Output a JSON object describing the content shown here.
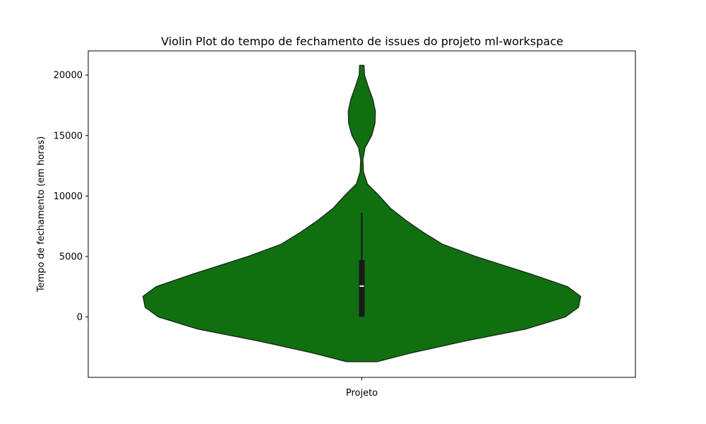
{
  "chart_data": {
    "type": "violin",
    "title": "Violin Plot do tempo de fechamento de issues do projeto ml-workspace",
    "xlabel": "",
    "ylabel": "Tempo de fechamento (em horas)",
    "categories": [
      "Projeto"
    ],
    "ylim": [
      -5000,
      22000
    ],
    "yticks": [
      0,
      5000,
      10000,
      15000,
      20000
    ],
    "grid": false,
    "color": "#107010",
    "edge_color": "#1c2a1c",
    "box_color": "#1a1a1a",
    "median_color": "#ffffff",
    "violin_extent": [
      -3700,
      20800
    ],
    "max_half_width": 1.0,
    "density_profile": [
      {
        "y": -3700,
        "w": 0.07
      },
      {
        "y": -3000,
        "w": 0.22
      },
      {
        "y": -2000,
        "w": 0.47
      },
      {
        "y": -1000,
        "w": 0.75
      },
      {
        "y": 0,
        "w": 0.93
      },
      {
        "y": 800,
        "w": 0.99
      },
      {
        "y": 1700,
        "w": 1.0
      },
      {
        "y": 2500,
        "w": 0.94
      },
      {
        "y": 3500,
        "w": 0.78
      },
      {
        "y": 5000,
        "w": 0.52
      },
      {
        "y": 6000,
        "w": 0.37
      },
      {
        "y": 7000,
        "w": 0.28
      },
      {
        "y": 8000,
        "w": 0.2
      },
      {
        "y": 9000,
        "w": 0.13
      },
      {
        "y": 10000,
        "w": 0.08
      },
      {
        "y": 11000,
        "w": 0.025
      },
      {
        "y": 12000,
        "w": 0.0075
      },
      {
        "y": 13000,
        "w": 0.005
      },
      {
        "y": 14000,
        "w": 0.015
      },
      {
        "y": 15000,
        "w": 0.045
      },
      {
        "y": 16000,
        "w": 0.06
      },
      {
        "y": 17000,
        "w": 0.062
      },
      {
        "y": 18000,
        "w": 0.05
      },
      {
        "y": 19000,
        "w": 0.03
      },
      {
        "y": 20000,
        "w": 0.012
      },
      {
        "y": 20800,
        "w": 0.01
      }
    ],
    "box": {
      "q1": 0,
      "median": 2550,
      "q3": 4700,
      "whisker_low": 0,
      "whisker_high": 8600
    }
  }
}
